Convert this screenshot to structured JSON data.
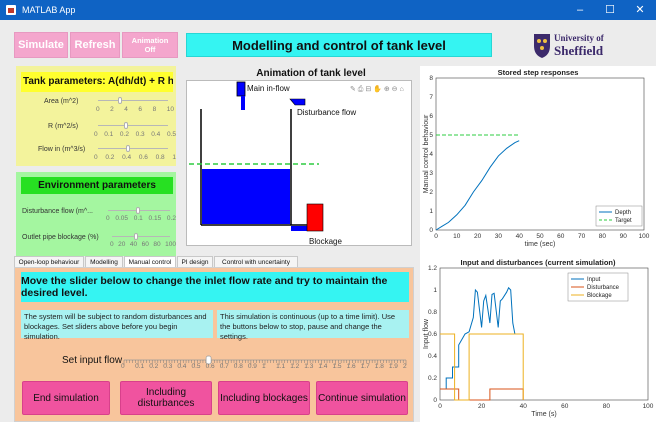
{
  "window": {
    "title": "MATLAB App"
  },
  "controls": {
    "simulate": "Simulate",
    "refresh": "Refresh",
    "animation": "Animation Off"
  },
  "header": {
    "title": "Modelling and control of tank level"
  },
  "logo": {
    "line1": "University of",
    "line2": "Sheffield",
    "accent": "#3c2a6b"
  },
  "tank_params": {
    "heading": "Tank parameters: A(dh/dt) + R h =...",
    "area_label": "Area (m^2)",
    "area_ticks": [
      "0",
      "2",
      "4",
      "6",
      "8",
      "10"
    ],
    "r_label": "R (m^2/s)",
    "r_ticks": [
      "0",
      "0.1",
      "0.2",
      "0.3",
      "0.4",
      "0.5"
    ],
    "flow_label": "Flow in (m^3/s)",
    "flow_ticks": [
      "0",
      "0.2",
      "0.4",
      "0.6",
      "0.8",
      "1"
    ]
  },
  "env_params": {
    "heading": "Environment parameters",
    "disturbance_label": "Disturbance flow (m^...",
    "disturbance_ticks": [
      "0",
      "0.05",
      "0.1",
      "0.15",
      "0.2"
    ],
    "blockage_label": "Outlet pipe blockage (%)",
    "blockage_ticks": [
      "0",
      "20",
      "40",
      "60",
      "80",
      "100"
    ]
  },
  "animation": {
    "title": "Animation of tank level",
    "main_inflow": "Main in-flow",
    "disturbance_flow": "Disturbance flow",
    "blockage": "Blockage"
  },
  "tabs": [
    {
      "label": "Open-loop behaviour",
      "active": false
    },
    {
      "label": "Modelling",
      "active": false
    },
    {
      "label": "Manual control",
      "active": true
    },
    {
      "label": "PI design",
      "active": false
    },
    {
      "label": "Control with uncertainty",
      "active": false
    }
  ],
  "manual": {
    "instruction": "Move the slider below to change the inlet flow rate and try to maintain the desired level.",
    "note1": "The system will be subject to random disturbances and blockages. Set sliders above before you begin simulation.",
    "note2": "This simulation is continuous (up to a time limit). Use the buttons below to stop, pause and change the settings.",
    "input_label": "Set input flow",
    "input_ticks": [
      "0",
      "0.1",
      "0.2",
      "0.3",
      "0.4",
      "0.5",
      "0.6",
      "0.7",
      "0.8",
      "0.9",
      "1",
      "1.1",
      "1.2",
      "1.3",
      "1.4",
      "1.5",
      "1.6",
      "1.7",
      "1.8",
      "1.9",
      "2"
    ],
    "input_value": 0.6,
    "buttons": {
      "end": "End simulation",
      "disturbances": "Including disturbances",
      "blockages": "Including blockages",
      "continue": "Continue simulation"
    }
  },
  "chart_data": [
    {
      "type": "line",
      "title": "Stored step responses",
      "xlabel": "time (sec)",
      "ylabel": "Manual control behaviour",
      "xlim": [
        0,
        100
      ],
      "ylim": [
        0,
        8
      ],
      "xticks": [
        "0",
        "10",
        "20",
        "30",
        "40",
        "50",
        "60",
        "70",
        "80",
        "90",
        "100"
      ],
      "yticks": [
        "0",
        "1",
        "2",
        "3",
        "4",
        "5",
        "6",
        "7",
        "8"
      ],
      "legend": "bottom-right",
      "series": [
        {
          "name": "Depth",
          "color": "#0072bd",
          "x": [
            0,
            3,
            6,
            10,
            14,
            18,
            22,
            26,
            30,
            34,
            38,
            40
          ],
          "y": [
            0,
            0.2,
            0.4,
            0.8,
            1.3,
            2.0,
            2.6,
            3.3,
            3.9,
            4.3,
            4.6,
            4.7
          ]
        },
        {
          "name": "Target",
          "color": "#2ecc40",
          "dashed": true,
          "x": [
            0,
            40
          ],
          "y": [
            5,
            5
          ]
        }
      ]
    },
    {
      "type": "line",
      "title": "Input and disturbances (current simulation)",
      "xlabel": "Time (s)",
      "ylabel": "Input flow",
      "xlim": [
        0,
        100
      ],
      "ylim": [
        0,
        1.2
      ],
      "xticks": [
        "0",
        "20",
        "40",
        "60",
        "80",
        "100"
      ],
      "yticks": [
        "0",
        "0.2",
        "0.4",
        "0.6",
        "0.8",
        "1",
        "1.2"
      ],
      "legend": "top-right",
      "series": [
        {
          "name": "Input",
          "color": "#0072bd",
          "x": [
            0,
            3,
            3,
            6,
            6,
            9,
            9,
            12,
            14,
            16,
            17,
            18,
            20,
            21,
            22,
            24,
            25,
            26,
            28,
            29,
            30,
            32,
            33,
            34,
            35,
            36,
            38,
            40
          ],
          "y": [
            0.1,
            0.1,
            0.2,
            0.2,
            0.3,
            0.3,
            0.5,
            0.6,
            0.62,
            0.75,
            1.0,
            0.98,
            0.66,
            0.9,
            0.95,
            0.7,
            0.96,
            0.97,
            0.66,
            0.9,
            0.92,
            0.98,
            1.02,
            1.0,
            0.7,
            0.6,
            0.6,
            0.6
          ]
        },
        {
          "name": "Disturbance",
          "color": "#d95319",
          "x": [
            0,
            9,
            9,
            24,
            24,
            40,
            40
          ],
          "y": [
            0.1,
            0.1,
            0,
            0,
            0.1,
            0.1,
            0
          ]
        },
        {
          "name": "Blockage",
          "color": "#edb120",
          "x": [
            0,
            6,
            6,
            7,
            7,
            14,
            14,
            40,
            40
          ],
          "y": [
            0.6,
            0.6,
            0.6,
            0.6,
            0,
            0,
            0.6,
            0.6,
            0
          ]
        }
      ]
    }
  ]
}
